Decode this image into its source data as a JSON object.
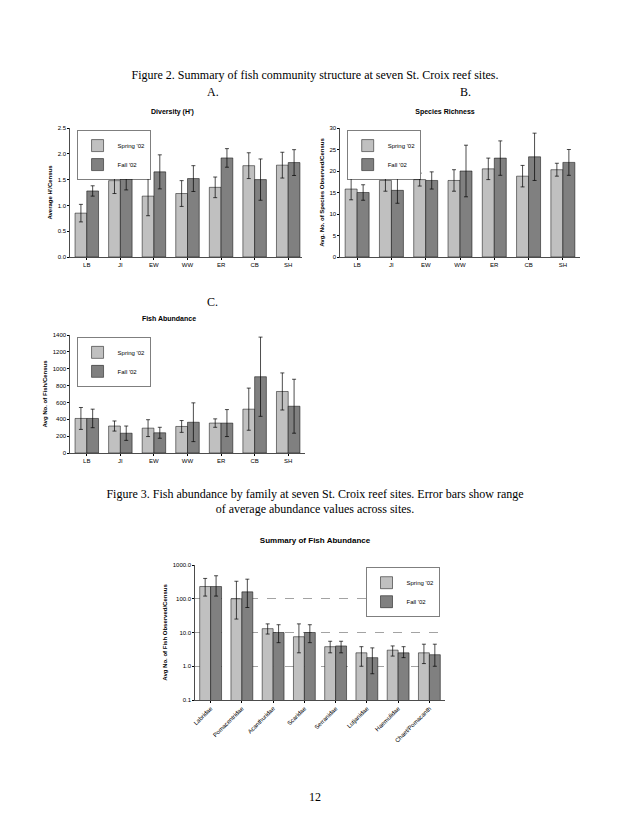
{
  "page": {
    "figure2_caption": "Figure 2.   Summary of fish community structure at seven St. Croix reef sites.",
    "panel_labels": [
      "A.",
      "B.",
      "C."
    ],
    "figure3_caption": "Figure 3.   Fish abundance by family at seven St. Croix reef sites.  Error bars show range of average abundance values across sites.",
    "page_number": "12"
  },
  "chart_data": [
    {
      "type": "bar",
      "title": "Diversity (H')",
      "y_label": "Average H'/Census",
      "categories": [
        "LB",
        "JI",
        "EW",
        "WW",
        "ER",
        "CB",
        "SH"
      ],
      "series": [
        {
          "name": "Spring '02",
          "color": "#c0c0c0",
          "values": [
            0.85,
            1.48,
            1.18,
            1.23,
            1.35,
            1.77,
            1.78
          ],
          "error": [
            0.17,
            0.25,
            0.38,
            0.25,
            0.2,
            0.25,
            0.25
          ]
        },
        {
          "name": "Fall '02",
          "color": "#808080",
          "values": [
            1.28,
            1.55,
            1.65,
            1.52,
            1.92,
            1.5,
            1.83
          ],
          "error": [
            0.1,
            0.25,
            0.33,
            0.25,
            0.18,
            0.4,
            0.25
          ]
        }
      ],
      "ylim": [
        0,
        2.5
      ],
      "yticks": [
        {
          "value": 0,
          "label": "0.0"
        },
        0.5,
        {
          "value": 1,
          "label": "1.0"
        },
        1.5,
        {
          "value": 2,
          "label": "2.0"
        },
        2.5
      ],
      "grid": false,
      "legend": "upper left"
    },
    {
      "type": "bar",
      "title": "Species Richness",
      "y_label": "Avg. No. of Species Observed/Census",
      "categories": [
        "LB",
        "JI",
        "EW",
        "WW",
        "ER",
        "CB",
        "SH"
      ],
      "series": [
        {
          "name": "Spring '02",
          "color": "#c0c0c0",
          "values": [
            15.8,
            17.8,
            18,
            17.8,
            20.5,
            18.8,
            20.3
          ],
          "error": [
            2.5,
            2.5,
            1.5,
            2.5,
            2.5,
            2.5,
            1.5
          ]
        },
        {
          "name": "Fall '02",
          "color": "#808080",
          "values": [
            15,
            15.5,
            17.8,
            20,
            23,
            23.3,
            22
          ],
          "error": [
            1.8,
            3,
            2,
            6,
            4,
            5.5,
            3
          ]
        }
      ],
      "ylim": [
        0,
        30
      ],
      "yticks": [
        0,
        5,
        10,
        15,
        20,
        25,
        30
      ],
      "grid": false,
      "legend": "upper left"
    },
    {
      "type": "bar",
      "title": "Fish Abundance",
      "y_label": "Avg No. of Fish/Census",
      "categories": [
        "LB",
        "JI",
        "EW",
        "WW",
        "ER",
        "CB",
        "SH"
      ],
      "series": [
        {
          "name": "Spring '02",
          "color": "#c0c0c0",
          "values": [
            410,
            320,
            295,
            315,
            355,
            520,
            730
          ],
          "error": [
            130,
            60,
            100,
            70,
            50,
            250,
            220
          ]
        },
        {
          "name": "Fall '02",
          "color": "#808080",
          "values": [
            410,
            235,
            240,
            365,
            355,
            905,
            555
          ],
          "error": [
            110,
            85,
            65,
            230,
            160,
            470,
            320
          ]
        }
      ],
      "ylim": [
        0,
        1400
      ],
      "yticks": [
        0,
        200,
        400,
        600,
        800,
        1000,
        1200,
        1400
      ],
      "grid": false,
      "legend": "upper left"
    },
    {
      "type": "bar",
      "title": "Summary of Fish Abundance",
      "y_label": "Avg No. of Fish Observed/Census",
      "categories": [
        "Labridae",
        "Pomacentridae",
        "Acanthuridae",
        "Scaridae",
        "Serranidae",
        "Lutjanidae",
        "Haemulidae",
        "Chaet/Pomacanth"
      ],
      "series": [
        {
          "name": "Spring '02",
          "color": "#c0c0c0",
          "values": [
            230,
            100,
            13,
            7.5,
            3.8,
            2.5,
            3,
            2.5
          ],
          "error_plus": [
            170,
            230,
            5,
            10.5,
            1.7,
            1.3,
            1,
            2
          ],
          "error_minus": [
            110,
            75,
            4,
            5,
            1.3,
            1.5,
            1,
            1.3
          ]
        },
        {
          "name": "Fall '02",
          "color": "#808080",
          "values": [
            230,
            160,
            10,
            10,
            4,
            1.8,
            2.5,
            2.2
          ],
          "error_plus": [
            250,
            220,
            7,
            7,
            1.5,
            1.7,
            1.3,
            2.3
          ],
          "error_minus": [
            110,
            105,
            5,
            5,
            1.5,
            1.2,
            0.7,
            1.2
          ]
        }
      ],
      "ylim": [
        0.1,
        1000
      ],
      "yticks": [
        0.1,
        {
          "value": 1,
          "label": "1.0"
        },
        {
          "value": 10,
          "label": "10.0"
        },
        {
          "value": 100,
          "label": "100.0"
        },
        {
          "value": 1000,
          "label": "1000.0"
        }
      ],
      "log": "y",
      "grid": true,
      "legend": "upper right"
    }
  ]
}
